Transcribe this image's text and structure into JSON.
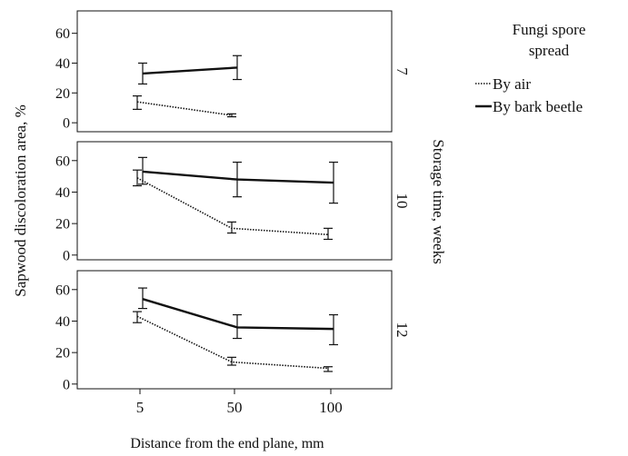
{
  "chart_data": {
    "type": "line",
    "categories": [
      "5",
      "50",
      "100"
    ],
    "xlabel": "Distance from the end plane, mm",
    "ylabel": "Sapwood discoloration area, %",
    "facet_label": "Storage time, weeks",
    "legend": {
      "title": "Fungi spore spread",
      "title_lines": [
        "Fungi spore",
        "spread"
      ],
      "placement": "right",
      "entries": [
        {
          "name": "By air",
          "style": "dotted"
        },
        {
          "name": "By bark beetle",
          "style": "solid"
        }
      ]
    },
    "panels": [
      {
        "label": "7",
        "yticks": [
          0,
          20,
          40,
          60
        ],
        "ylim": [
          -6,
          75
        ],
        "series": [
          {
            "name": "By bark beetle",
            "style": "solid",
            "points": [
              {
                "x": "5",
                "y": 33,
                "err_low": 26,
                "err_high": 40
              },
              {
                "x": "50",
                "y": 37,
                "err_low": 29,
                "err_high": 45
              }
            ]
          },
          {
            "name": "By air",
            "style": "dotted",
            "points": [
              {
                "x": "5",
                "y": 14,
                "err_low": 9,
                "err_high": 18
              },
              {
                "x": "50",
                "y": 5,
                "err_low": 4,
                "err_high": 6
              }
            ]
          }
        ]
      },
      {
        "label": "10",
        "yticks": [
          0,
          20,
          40,
          60
        ],
        "ylim": [
          -3,
          72
        ],
        "series": [
          {
            "name": "By bark beetle",
            "style": "solid",
            "points": [
              {
                "x": "5",
                "y": 53,
                "err_low": 45,
                "err_high": 62
              },
              {
                "x": "50",
                "y": 48,
                "err_low": 37,
                "err_high": 59
              },
              {
                "x": "100",
                "y": 46,
                "err_low": 33,
                "err_high": 59
              }
            ]
          },
          {
            "name": "By air",
            "style": "dotted",
            "points": [
              {
                "x": "5",
                "y": 49,
                "err_low": 44,
                "err_high": 54
              },
              {
                "x": "50",
                "y": 17,
                "err_low": 14,
                "err_high": 21
              },
              {
                "x": "100",
                "y": 13,
                "err_low": 10,
                "err_high": 17
              }
            ]
          }
        ]
      },
      {
        "label": "12",
        "yticks": [
          0,
          20,
          40,
          60
        ],
        "ylim": [
          -3,
          72
        ],
        "series": [
          {
            "name": "By bark beetle",
            "style": "solid",
            "points": [
              {
                "x": "5",
                "y": 54,
                "err_low": 48,
                "err_high": 61
              },
              {
                "x": "50",
                "y": 36,
                "err_low": 29,
                "err_high": 44
              },
              {
                "x": "100",
                "y": 35,
                "err_low": 25,
                "err_high": 44
              }
            ]
          },
          {
            "name": "By air",
            "style": "dotted",
            "points": [
              {
                "x": "5",
                "y": 43,
                "err_low": 39,
                "err_high": 46
              },
              {
                "x": "50",
                "y": 14,
                "err_low": 12,
                "err_high": 17
              },
              {
                "x": "100",
                "y": 10,
                "err_low": 8,
                "err_high": 11
              }
            ]
          }
        ]
      }
    ]
  }
}
